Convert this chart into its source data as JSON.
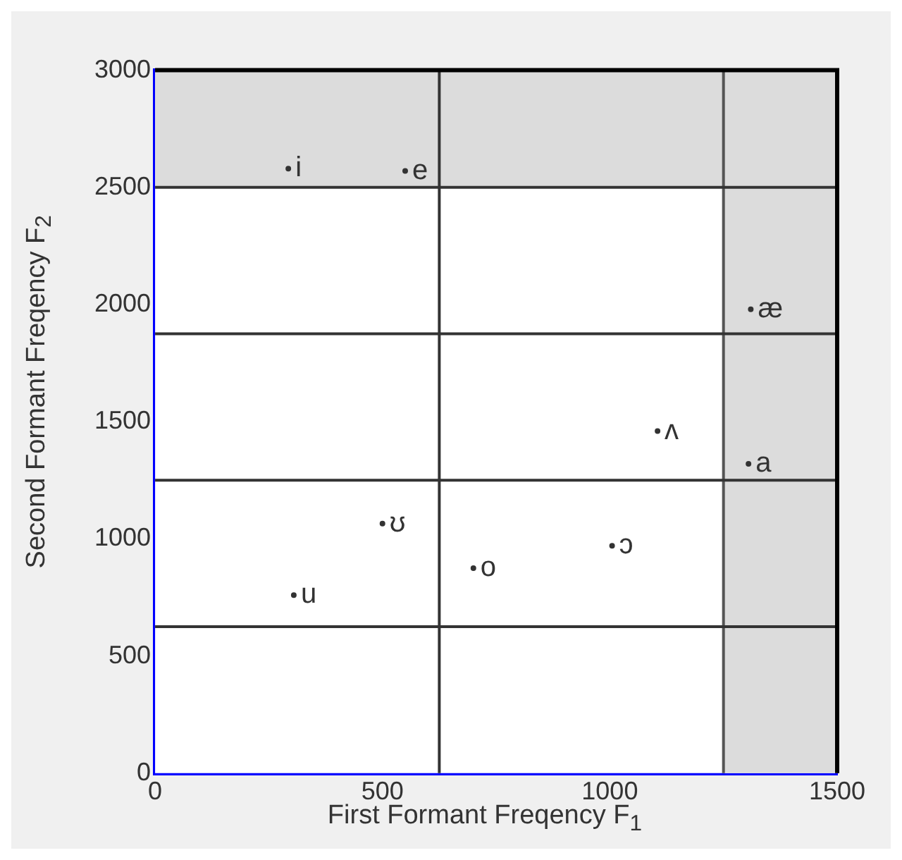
{
  "chart_data": {
    "type": "scatter",
    "xlabel": "First Formant Freqency F$_{1}$",
    "ylabel": "Second Formant Freqency F$_{2}$",
    "series": [
      {
        "color": "#333333",
        "x": [
          293,
          550,
          1310,
          1105,
          1305,
          500,
          305,
          700,
          1005
        ],
        "values": [
          2580,
          2570,
          1980,
          1460,
          1320,
          1065,
          760,
          875,
          970
        ],
        "value_labels": [
          "i",
          "e",
          "æ",
          "ʌ",
          "a",
          "ʊ",
          "u",
          "o",
          "ɔ"
        ]
      }
    ],
    "xlim": [
      0,
      1500
    ],
    "xticks": [
      0,
      500,
      1000,
      1500
    ],
    "ylim": [
      0,
      3000
    ],
    "yticks": [
      0,
      500,
      1000,
      1500,
      2000,
      2500,
      3000
    ],
    "legend": false,
    "ref_lines": [
      {
        "axis": "x",
        "value": 625,
        "color": "#333333"
      },
      {
        "axis": "x",
        "value": 1250,
        "color": "#555555"
      },
      {
        "axis": "y",
        "value": 625,
        "color": "#333333"
      },
      {
        "axis": "y",
        "value": 1250,
        "color": "#333333"
      },
      {
        "axis": "y",
        "value": 1875,
        "color": "#333333"
      },
      {
        "axis": "y",
        "value": 2500,
        "color": "#333333"
      }
    ],
    "bands": [
      {
        "axis": "y",
        "from": 2500,
        "to": 3000,
        "color": "#dcdcdc"
      },
      {
        "axis": "x",
        "from": 1250,
        "to": 1500,
        "color": "#dcdcdc"
      }
    ]
  }
}
